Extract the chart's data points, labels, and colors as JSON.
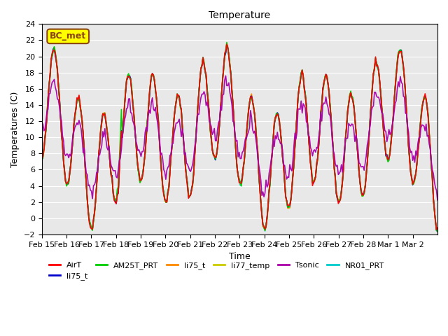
{
  "title": "Temperature",
  "xlabel": "Time",
  "ylabel": "Temperatures (C)",
  "ylim": [
    -2,
    24
  ],
  "background_color": "#ffffff",
  "plot_bg_color": "#e8e8e8",
  "annotation_text": "BC_met",
  "annotation_bg": "#ffff00",
  "annotation_border": "#8B4513",
  "series_colors": {
    "AirT": "#ff0000",
    "li75_t_b": "#0000cc",
    "AM25T_PRT": "#00cc00",
    "li75_t": "#ff8800",
    "li77_temp": "#cccc00",
    "Tsonic": "#aa00aa",
    "NR01_PRT": "#00cccc"
  },
  "xtick_labels": [
    "Feb 15",
    "Feb 16",
    "Feb 17",
    "Feb 18",
    "Feb 19",
    "Feb 20",
    "Feb 21",
    "Feb 22",
    "Feb 23",
    "Feb 24",
    "Feb 25",
    "Feb 26",
    "Feb 27",
    "Feb 28",
    "Mar 1",
    "Mar 2"
  ],
  "legend_entries": [
    {
      "label": "AirT",
      "color": "#ff0000"
    },
    {
      "label": "li75_t",
      "color": "#0000cc"
    },
    {
      "label": "AM25T_PRT",
      "color": "#00cc00"
    },
    {
      "label": "li75_t",
      "color": "#ff8800"
    },
    {
      "label": "li77_temp",
      "color": "#cccc00"
    },
    {
      "label": "Tsonic",
      "color": "#aa00aa"
    },
    {
      "label": "NR01_PRT",
      "color": "#00cccc"
    }
  ]
}
